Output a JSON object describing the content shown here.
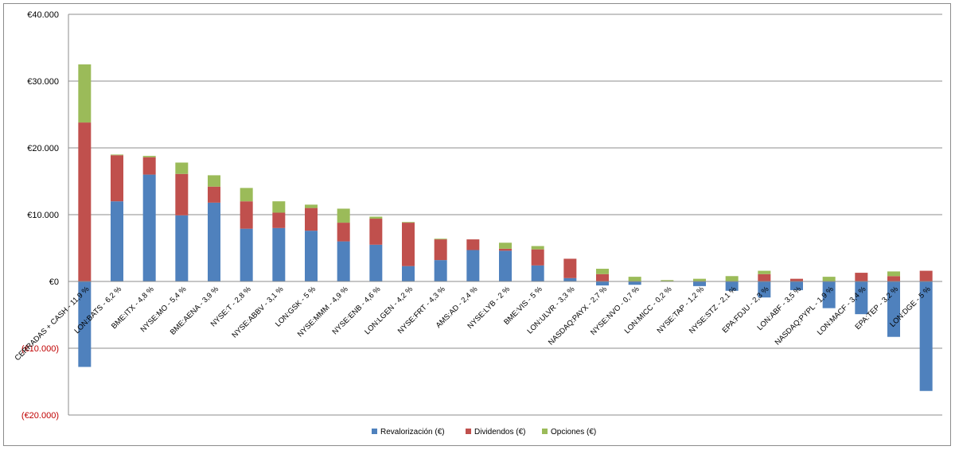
{
  "chart_data": {
    "type": "bar",
    "stacked": true,
    "title": "",
    "xlabel": "",
    "ylabel": "",
    "ylim": [
      -20000,
      40000
    ],
    "y_ticks": [
      40000,
      30000,
      20000,
      10000,
      0,
      -10000,
      -20000
    ],
    "y_tick_labels": [
      "€40.000",
      "€30.000",
      "€20.000",
      "€10.000",
      "€0",
      "(€10.000)",
      "(€20.000)"
    ],
    "negative_label_color": "#c00000",
    "grid": true,
    "legend_position": "bottom",
    "categories": [
      "CERRADAS + CASH - 11,9 %",
      "LON:BATS - 6,2 %",
      "BME:ITX - 4,8 %",
      "NYSE:MO - 5,4 %",
      "BME:AENA - 3,9 %",
      "NYSE:T - 2,8 %",
      "NYSE:ABBV - 3,1 %",
      "LON:GSK - 5 %",
      "NYSE:MMM - 4,9 %",
      "NYSE:ENB - 4,6 %",
      "LON:LGEN - 4,2 %",
      "NYSE:FRT - 4,3 %",
      "AMS:AD - 2,4 %",
      "NYSE:LYB - 2 %",
      "BME:VIS - 5 %",
      "LON:ULVR - 3,3 %",
      "NASDAQ:PAYX - 2,7 %",
      "NYSE:NVO - 0,7 %",
      "LON:MICC - 0,2 %",
      "NYSE:TAP - 1,2 %",
      "NYSE:STZ - 2,1 %",
      "EPA:FDJU - 2,3 %",
      "LON:ABF - 3,5 %",
      "NASDAQ:PYPL - 1,9 %",
      "LON:MACF - 3,4 %",
      "EPA:TEP - 3,2 %",
      "LON:DGE - 5 %"
    ],
    "series": [
      {
        "name": "Revalorización (€)",
        "color": "#4f81bd",
        "values": [
          -12800,
          12000,
          16000,
          9900,
          11800,
          7900,
          8000,
          7600,
          6000,
          5500,
          2300,
          3200,
          4700,
          4600,
          2400,
          500,
          -600,
          -500,
          0,
          -700,
          -1400,
          -2400,
          -1300,
          -4000,
          -4900,
          -8300,
          -16400
        ]
      },
      {
        "name": "Dividendos (€)",
        "color": "#c0504d",
        "values": [
          23800,
          6900,
          2600,
          6200,
          2400,
          4100,
          2300,
          3400,
          2800,
          3900,
          6500,
          3100,
          1600,
          300,
          2400,
          2900,
          1100,
          0,
          0,
          0,
          0,
          1100,
          400,
          0,
          1300,
          800,
          1600
        ]
      },
      {
        "name": "Opciones (€)",
        "color": "#9bbb59",
        "values": [
          8700,
          100,
          200,
          1700,
          1700,
          2000,
          1700,
          500,
          2100,
          300,
          100,
          100,
          0,
          900,
          500,
          0,
          800,
          700,
          200,
          400,
          800,
          500,
          0,
          700,
          0,
          700,
          0
        ]
      }
    ]
  }
}
